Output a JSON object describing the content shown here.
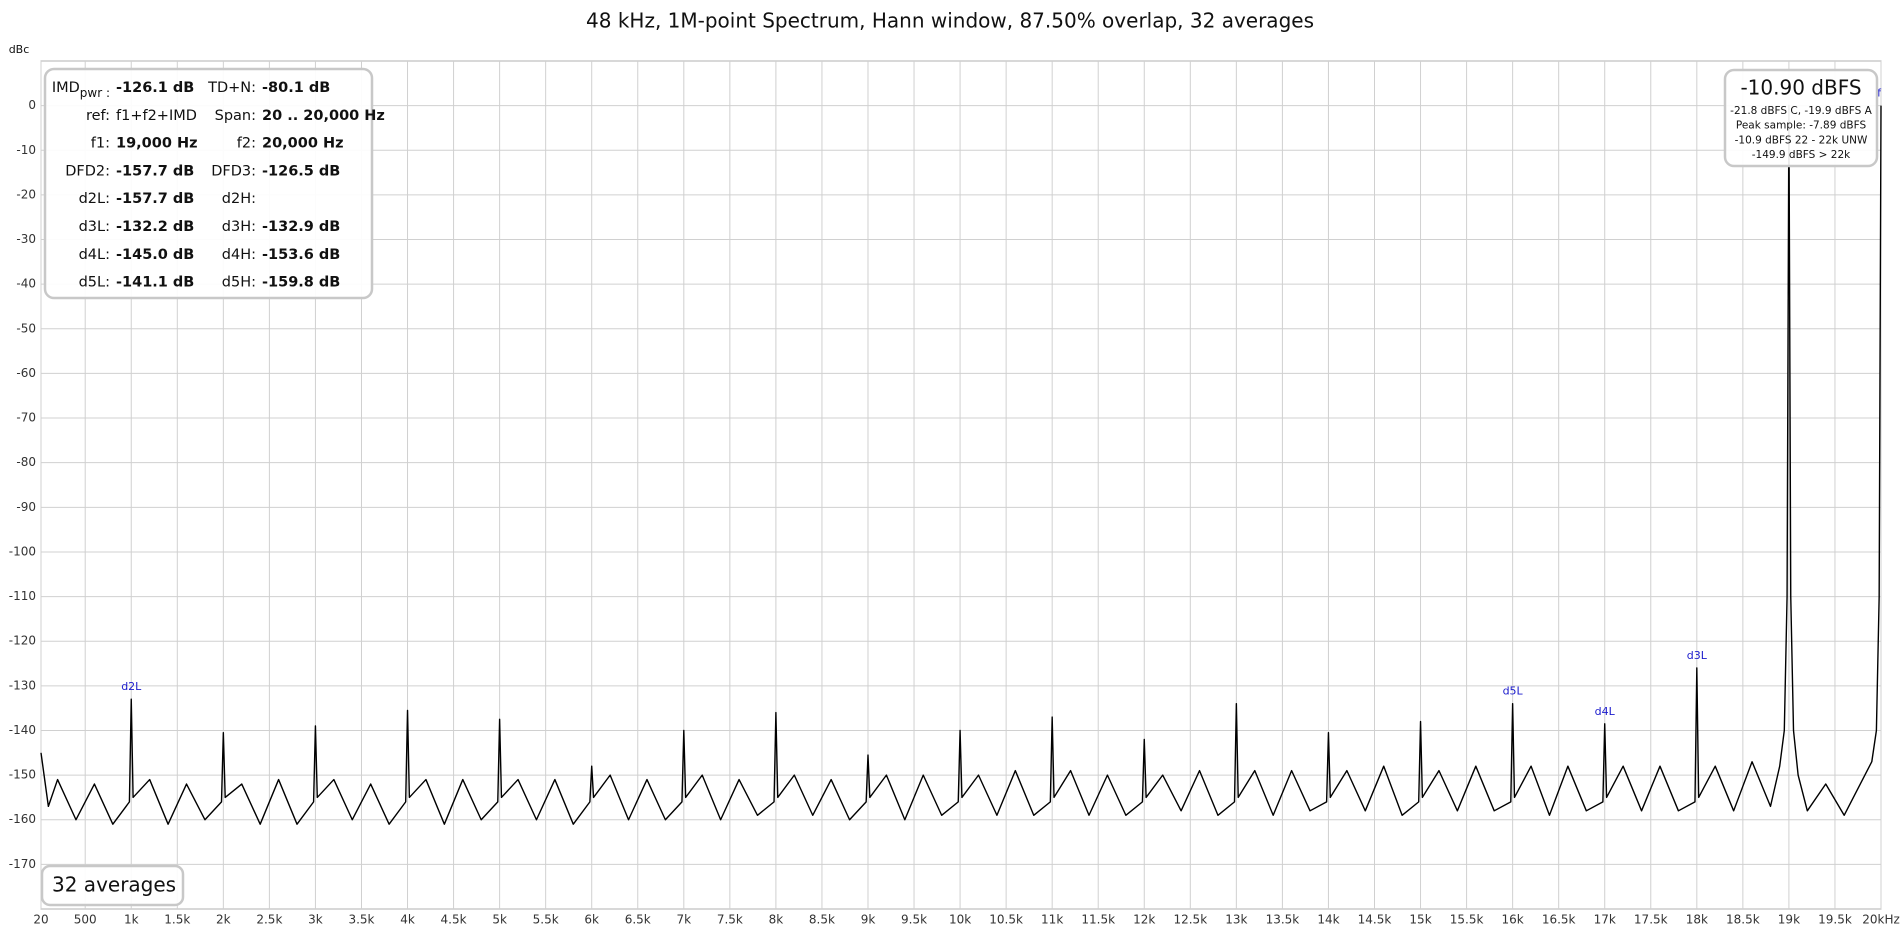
{
  "chart_data": {
    "type": "line",
    "title": "48 kHz, 1M-point Spectrum, Hann window, 87.50% overlap, 32 averages",
    "y_label": "dBc",
    "xlim": [
      20,
      20000
    ],
    "ylim": [
      -180,
      10
    ],
    "grid": true,
    "yticks": [
      0,
      -10,
      -20,
      -30,
      -40,
      -50,
      -60,
      -70,
      -80,
      -90,
      -100,
      -110,
      -120,
      -130,
      -140,
      -150,
      -160,
      -170
    ],
    "xticks": [
      20,
      500,
      {
        "value": 1000,
        "label": "1k"
      },
      {
        "value": 1500,
        "label": "1.5k"
      },
      {
        "value": 2000,
        "label": "2k"
      },
      {
        "value": 2500,
        "label": "2.5k"
      },
      {
        "value": 3000,
        "label": "3k"
      },
      {
        "value": 3500,
        "label": "3.5k"
      },
      {
        "value": 4000,
        "label": "4k"
      },
      {
        "value": 4500,
        "label": "4.5k"
      },
      {
        "value": 5000,
        "label": "5k"
      },
      {
        "value": 5500,
        "label": "5.5k"
      },
      {
        "value": 6000,
        "label": "6k"
      },
      {
        "value": 6500,
        "label": "6.5k"
      },
      {
        "value": 7000,
        "label": "7k"
      },
      {
        "value": 7500,
        "label": "7.5k"
      },
      {
        "value": 8000,
        "label": "8k"
      },
      {
        "value": 8500,
        "label": "8.5k"
      },
      {
        "value": 9000,
        "label": "9k"
      },
      {
        "value": 9500,
        "label": "9.5k"
      },
      {
        "value": 10000,
        "label": "10k"
      },
      {
        "value": 10500,
        "label": "10.5k"
      },
      {
        "value": 11000,
        "label": "11k"
      },
      {
        "value": 11500,
        "label": "11.5k"
      },
      {
        "value": 12000,
        "label": "12k"
      },
      {
        "value": 12500,
        "label": "12.5k"
      },
      {
        "value": 13000,
        "label": "13k"
      },
      {
        "value": 13500,
        "label": "13.5k"
      },
      {
        "value": 14000,
        "label": "14k"
      },
      {
        "value": 14500,
        "label": "14.5k"
      },
      {
        "value": 15000,
        "label": "15k"
      },
      {
        "value": 15500,
        "label": "15.5k"
      },
      {
        "value": 16000,
        "label": "16k"
      },
      {
        "value": 16500,
        "label": "16.5k"
      },
      {
        "value": 17000,
        "label": "17k"
      },
      {
        "value": 17500,
        "label": "17.5k"
      },
      {
        "value": 18000,
        "label": "18k"
      },
      {
        "value": 18500,
        "label": "18.5k"
      },
      {
        "value": 19000,
        "label": "19k"
      },
      {
        "value": 19500,
        "label": "19.5k"
      },
      {
        "value": 20000,
        "label": "20kHz"
      }
    ],
    "x": [
      20,
      100,
      200,
      400,
      600,
      800,
      980,
      1000,
      1020,
      1200,
      1400,
      1600,
      1800,
      1980,
      2000,
      2020,
      2200,
      2400,
      2600,
      2800,
      2980,
      3000,
      3020,
      3200,
      3400,
      3600,
      3800,
      3980,
      4000,
      4020,
      4200,
      4400,
      4600,
      4800,
      4980,
      5000,
      5020,
      5200,
      5400,
      5600,
      5800,
      5980,
      6000,
      6020,
      6200,
      6400,
      6600,
      6800,
      6980,
      7000,
      7020,
      7200,
      7400,
      7600,
      7800,
      7980,
      8000,
      8020,
      8200,
      8400,
      8600,
      8800,
      8980,
      9000,
      9020,
      9200,
      9400,
      9600,
      9800,
      9980,
      10000,
      10020,
      10200,
      10400,
      10600,
      10800,
      10980,
      11000,
      11020,
      11200,
      11400,
      11600,
      11800,
      11980,
      12000,
      12020,
      12200,
      12400,
      12600,
      12800,
      12980,
      13000,
      13020,
      13200,
      13400,
      13600,
      13800,
      13980,
      14000,
      14020,
      14200,
      14400,
      14600,
      14800,
      14980,
      15000,
      15020,
      15200,
      15400,
      15600,
      15800,
      15980,
      16000,
      16020,
      16200,
      16400,
      16600,
      16800,
      16980,
      17000,
      17020,
      17200,
      17400,
      17600,
      17800,
      17980,
      18000,
      18020,
      18200,
      18400,
      18600,
      18800,
      18900,
      18950,
      18980,
      19000,
      19020,
      19050,
      19100,
      19200,
      19400,
      19600,
      19800,
      19900,
      19950,
      19980,
      20000
    ],
    "series": [
      {
        "color": "#000000",
        "values": [
          -145,
          -157,
          -151,
          -160,
          -152,
          -161,
          -156,
          -133,
          -155,
          -151,
          -161,
          -152,
          -160,
          -156,
          -140.5,
          -155,
          -152,
          -161,
          -151,
          -161,
          -156,
          -139,
          -155,
          -151,
          -160,
          -152,
          -161,
          -156,
          -135.5,
          -155,
          -151,
          -161,
          -151,
          -160,
          -156,
          -137.5,
          -155,
          -151,
          -160,
          -151,
          -161,
          -156,
          -148,
          -155,
          -150,
          -160,
          -151,
          -160,
          -156,
          -140,
          -155,
          -150,
          -160,
          -151,
          -159,
          -156,
          -136,
          -155,
          -150,
          -159,
          -151,
          -160,
          -156,
          -145.5,
          -155,
          -150,
          -160,
          -150,
          -159,
          -156,
          -140,
          -155,
          -150,
          -159,
          -149,
          -159,
          -156,
          -137,
          -155,
          -149,
          -159,
          -150,
          -159,
          -156,
          -142,
          -155,
          -150,
          -158,
          -149,
          -159,
          -156,
          -134,
          -155,
          -149,
          -159,
          -149,
          -158,
          -156,
          -140.5,
          -155,
          -149,
          -158,
          -148,
          -159,
          -156,
          -138,
          -155,
          -149,
          -158,
          -148,
          -158,
          -156,
          -134,
          -155,
          -148,
          -159,
          -148,
          -158,
          -156,
          -138.5,
          -155,
          -148,
          -158,
          -148,
          -158,
          -156,
          -126,
          -155,
          -148,
          -158,
          -147,
          -157,
          -148,
          -140,
          -110,
          0,
          -110,
          -140,
          -150,
          -158,
          -152,
          -159,
          -151,
          -147,
          -140,
          -110,
          0
        ]
      }
    ],
    "annotations": [
      {
        "text": "d2L",
        "x": 1000
      },
      {
        "text": "d5L",
        "x": 16000
      },
      {
        "text": "d4L",
        "x": 17000
      },
      {
        "text": "d3L",
        "x": 18000
      },
      {
        "text": "f",
        "x": 20000
      }
    ],
    "annotation_color": "#1a1acc",
    "info_table": {
      "subscript": "pwr :",
      "rows": [
        [
          "IMD",
          "-126.1 dB",
          "TD+N:",
          "-80.1 dB"
        ],
        [
          "ref:",
          "f1+f2+IMD",
          "Span:",
          "20 .. 20,000 Hz"
        ],
        [
          "f1:",
          "19,000 Hz",
          "f2:",
          "20,000 Hz"
        ],
        [
          "DFD2:",
          "-157.7 dB",
          "DFD3:",
          "-126.5 dB"
        ],
        [
          "d2L:",
          "-157.7 dB",
          "d2H:"
        ],
        [
          "d3L:",
          "-132.2 dB",
          "d3H:",
          "-132.9 dB"
        ],
        [
          "d4L:",
          "-145.0 dB",
          "d4H:",
          "-153.6 dB"
        ],
        [
          "d5L:",
          "-141.1 dB",
          "d5H:",
          "-159.8 dB"
        ]
      ]
    },
    "level_readout": {
      "main": "-10.90 dBFS",
      "lines": [
        "-21.8 dBFS C, -19.9 dBFS A",
        "Peak sample: -7.89 dBFS",
        "-10.9 dBFS 22 - 22k UNW",
        "-149.9 dBFS > 22k"
      ]
    },
    "averages_label": "32 averages"
  }
}
